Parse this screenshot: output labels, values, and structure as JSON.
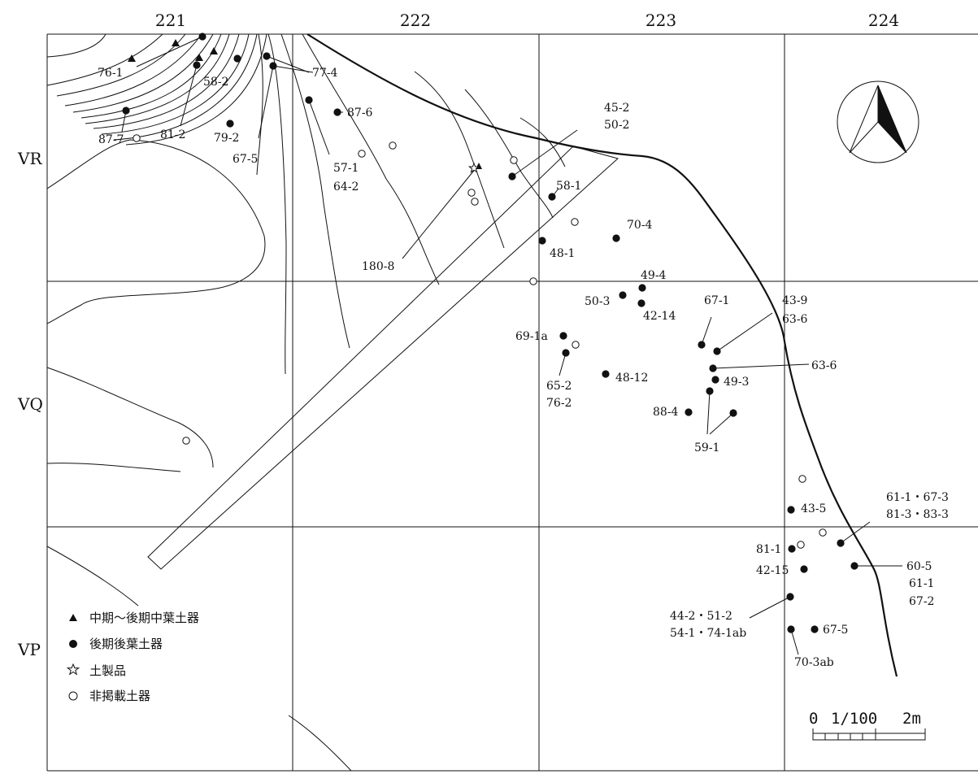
{
  "grid": {
    "columns": [
      "221",
      "222",
      "223",
      "224"
    ],
    "rows": [
      "VR",
      "VQ",
      "VP"
    ]
  },
  "labels": [
    {
      "text": "76-1"
    },
    {
      "text": "58-2"
    },
    {
      "text": "77-4"
    },
    {
      "text": "81-2"
    },
    {
      "text": "87-7"
    },
    {
      "text": "79-2"
    },
    {
      "text": "67-5"
    },
    {
      "text": "87-6"
    },
    {
      "text": "57-1"
    },
    {
      "text": "64-2"
    },
    {
      "text": "45-2"
    },
    {
      "text": "50-2"
    },
    {
      "text": "58-1"
    },
    {
      "text": "70-4"
    },
    {
      "text": "48-1"
    },
    {
      "text": "180-8"
    },
    {
      "text": "49-4"
    },
    {
      "text": "50-3"
    },
    {
      "text": "42-14"
    },
    {
      "text": "67-1"
    },
    {
      "text": "43-9"
    },
    {
      "text": "63-6"
    },
    {
      "text": "63-6"
    },
    {
      "text": "69-1a"
    },
    {
      "text": "48-12"
    },
    {
      "text": "49-3"
    },
    {
      "text": "65-2"
    },
    {
      "text": "76-2"
    },
    {
      "text": "88-4"
    },
    {
      "text": "59-1"
    },
    {
      "text": "43-5"
    },
    {
      "text": "61-1・67-3"
    },
    {
      "text": "81-3・83-3"
    },
    {
      "text": "81-1"
    },
    {
      "text": "42-15"
    },
    {
      "text": "60-5"
    },
    {
      "text": "61-1"
    },
    {
      "text": "67-2"
    },
    {
      "text": "44-2・51-2"
    },
    {
      "text": "54-1・74-1ab"
    },
    {
      "text": "67-5"
    },
    {
      "text": "70-3ab"
    }
  ],
  "legend": {
    "items": [
      {
        "symbol": "filled-triangle",
        "label": "中期～後期中葉土器"
      },
      {
        "symbol": "filled-circle",
        "label": "後期後葉土器"
      },
      {
        "symbol": "outline-star",
        "label": "土製品"
      },
      {
        "symbol": "open-circle",
        "label": "非掲載土器"
      }
    ]
  },
  "scale_bar": {
    "start": "0",
    "ratio": "1/100",
    "end": "2m"
  }
}
